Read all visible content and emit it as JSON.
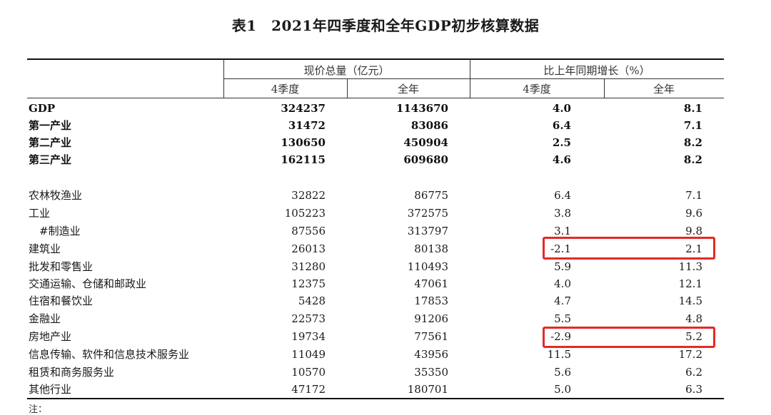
{
  "title": "表1　2021年四季度和全年GDP初步核算数据",
  "header": {
    "group1": "现价总量（亿元）",
    "group2": "比上年同期增长（%）",
    "col_q4": "4季度",
    "col_year": "全年",
    "col_q4_growth": "4季度",
    "col_year_growth": "全年"
  },
  "rows": [
    {
      "name": "GDP",
      "q4": "324237",
      "year": "1143670",
      "q4_growth": "4.0",
      "year_growth": "8.1",
      "bold": true
    },
    {
      "name": "第一产业",
      "q4": "31472",
      "year": "83086",
      "q4_growth": "6.4",
      "year_growth": "7.1",
      "bold": true
    },
    {
      "name": "第二产业",
      "q4": "130650",
      "year": "450904",
      "q4_growth": "2.5",
      "year_growth": "8.2",
      "bold": true
    },
    {
      "name": "第三产业",
      "q4": "162115",
      "year": "609680",
      "q4_growth": "4.6",
      "year_growth": "8.2",
      "bold": true
    },
    {
      "name": "农林牧渔业",
      "q4": "32822",
      "year": "86775",
      "q4_growth": "6.4",
      "year_growth": "7.1",
      "bold": false
    },
    {
      "name": "工业",
      "q4": "105223",
      "year": "372575",
      "q4_growth": "3.8",
      "year_growth": "9.6",
      "bold": false
    },
    {
      "name": "　#制造业",
      "q4": "87556",
      "year": "313797",
      "q4_growth": "3.1",
      "year_growth": "9.8",
      "bold": false
    },
    {
      "name": "建筑业",
      "q4": "26013",
      "year": "80138",
      "q4_growth": "-2.1",
      "year_growth": "2.1",
      "bold": false,
      "highlight": true
    },
    {
      "name": "批发和零售业",
      "q4": "31280",
      "year": "110493",
      "q4_growth": "5.9",
      "year_growth": "11.3",
      "bold": false
    },
    {
      "name": "交通运输、仓储和邮政业",
      "q4": "12375",
      "year": "47061",
      "q4_growth": "4.0",
      "year_growth": "12.1",
      "bold": false
    },
    {
      "name": "住宿和餐饮业",
      "q4": "5428",
      "year": "17853",
      "q4_growth": "4.7",
      "year_growth": "14.5",
      "bold": false
    },
    {
      "name": "金融业",
      "q4": "22573",
      "year": "91206",
      "q4_growth": "5.5",
      "year_growth": "4.8",
      "bold": false
    },
    {
      "name": "房地产业",
      "q4": "19734",
      "year": "77561",
      "q4_growth": "-2.9",
      "year_growth": "5.2",
      "bold": false,
      "highlight": true
    },
    {
      "name": "信息传输、软件和信息技术服务业",
      "q4": "11049",
      "year": "43956",
      "q4_growth": "11.5",
      "year_growth": "17.2",
      "bold": false
    },
    {
      "name": "租赁和商务服务业",
      "q4": "10570",
      "year": "35350",
      "q4_growth": "5.6",
      "year_growth": "6.2",
      "bold": false
    },
    {
      "name": "其他行业",
      "q4": "47172",
      "year": "180701",
      "q4_growth": "5.0",
      "year_growth": "6.3",
      "bold": false
    }
  ],
  "note": "注：",
  "highlight_color": "#e52a24"
}
